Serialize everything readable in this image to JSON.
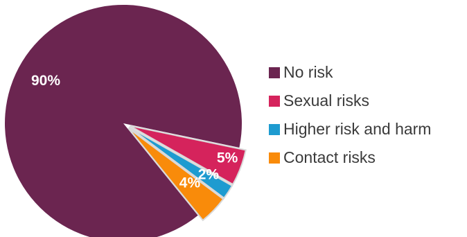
{
  "chart_data": {
    "type": "pie",
    "categories": [
      "No risk",
      "Sexual risks",
      "Higher risk and harm",
      "Contact risks"
    ],
    "values": [
      90,
      5,
      2,
      4
    ],
    "labels": [
      "90%",
      "5%",
      "2%",
      "4%"
    ],
    "colors": [
      "#6b2550",
      "#d5235c",
      "#1e9bd0",
      "#f98b0a"
    ],
    "legend_position": "right",
    "title": ""
  }
}
